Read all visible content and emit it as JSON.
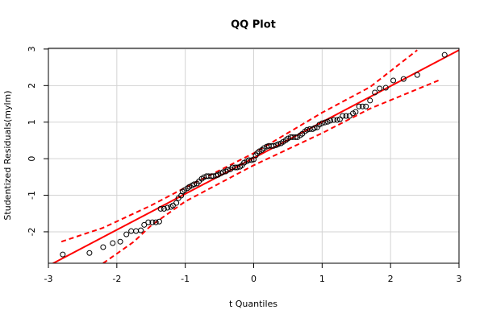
{
  "chart_data": {
    "type": "scatter",
    "title": "QQ Plot",
    "x_label": "t Quantiles",
    "y_label": "Studentized Residuals(mylm)",
    "xlim": [
      -3,
      3
    ],
    "ylim": [
      -2.86,
      3.02
    ],
    "xticks": [
      -3,
      -2,
      -1,
      0,
      1,
      2,
      3
    ],
    "yticks": [
      -2,
      -1,
      0,
      1,
      2,
      3
    ],
    "grid": true,
    "color": "#000000",
    "x": [
      -2.79,
      -2.4,
      -2.2,
      -2.06,
      -1.95,
      -1.86,
      -1.79,
      -1.72,
      -1.65,
      -1.6,
      -1.54,
      -1.48,
      -1.43,
      -1.38,
      -1.36,
      -1.31,
      -1.26,
      -1.21,
      -1.18,
      -1.13,
      -1.1,
      -1.06,
      -1.04,
      -1.01,
      -0.97,
      -0.94,
      -0.9,
      -0.87,
      -0.83,
      -0.8,
      -0.76,
      -0.73,
      -0.69,
      -0.66,
      -0.62,
      -0.59,
      -0.55,
      -0.52,
      -0.48,
      -0.45,
      -0.41,
      -0.38,
      -0.34,
      -0.31,
      -0.27,
      -0.24,
      -0.2,
      -0.17,
      -0.14,
      -0.1,
      -0.07,
      -0.03,
      0,
      0.03,
      0.05,
      0.08,
      0.12,
      0.15,
      0.19,
      0.22,
      0.26,
      0.29,
      0.33,
      0.36,
      0.4,
      0.43,
      0.47,
      0.5,
      0.54,
      0.57,
      0.61,
      0.64,
      0.68,
      0.71,
      0.75,
      0.78,
      0.82,
      0.86,
      0.89,
      0.93,
      0.96,
      1.0,
      1.04,
      1.08,
      1.12,
      1.17,
      1.22,
      1.26,
      1.3,
      1.35,
      1.4,
      1.45,
      1.49,
      1.54,
      1.59,
      1.64,
      1.7,
      1.77,
      1.84,
      1.93,
      2.04,
      2.19,
      2.39,
      2.79
    ],
    "y": [
      -2.62,
      -2.58,
      -2.42,
      -2.31,
      -2.27,
      -2.07,
      -1.98,
      -1.98,
      -1.96,
      -1.81,
      -1.74,
      -1.74,
      -1.74,
      -1.72,
      -1.37,
      -1.37,
      -1.34,
      -1.32,
      -1.28,
      -1.21,
      -1.08,
      -1.01,
      -0.9,
      -0.86,
      -0.81,
      -0.77,
      -0.73,
      -0.7,
      -0.68,
      -0.62,
      -0.55,
      -0.51,
      -0.48,
      -0.48,
      -0.48,
      -0.48,
      -0.46,
      -0.44,
      -0.4,
      -0.37,
      -0.35,
      -0.31,
      -0.29,
      -0.24,
      -0.24,
      -0.24,
      -0.22,
      -0.18,
      -0.11,
      -0.07,
      -0.04,
      -0.04,
      -0.02,
      0.09,
      0.15,
      0.2,
      0.24,
      0.29,
      0.33,
      0.35,
      0.35,
      0.35,
      0.37,
      0.4,
      0.42,
      0.46,
      0.51,
      0.55,
      0.59,
      0.59,
      0.59,
      0.59,
      0.64,
      0.68,
      0.75,
      0.79,
      0.81,
      0.81,
      0.84,
      0.86,
      0.93,
      0.97,
      0.99,
      1.01,
      1.04,
      1.06,
      1.06,
      1.08,
      1.17,
      1.17,
      1.17,
      1.24,
      1.28,
      1.43,
      1.43,
      1.43,
      1.59,
      1.81,
      1.92,
      1.94,
      2.14,
      2.18,
      2.29,
      2.84
    ],
    "reference_line": {
      "color": "#ff0000",
      "x": [
        -3,
        3
      ],
      "y": [
        -2.93,
        2.97
      ]
    },
    "upper_band": {
      "color": "#ff0000",
      "x": [
        -2.81,
        -2.2,
        -1.5,
        -1.0,
        0,
        1.0,
        1.7,
        2.39
      ],
      "y": [
        -2.27,
        -1.89,
        -1.28,
        -0.79,
        0.15,
        1.26,
        1.96,
        2.97
      ]
    },
    "lower_band": {
      "color": "#ff0000",
      "x": [
        -2.2,
        -1.75,
        -1.5,
        -1.0,
        0,
        1.0,
        1.7,
        2.7
      ],
      "y": [
        -2.86,
        -2.27,
        -1.83,
        -1.17,
        -0.18,
        0.7,
        1.37,
        2.14
      ]
    }
  }
}
